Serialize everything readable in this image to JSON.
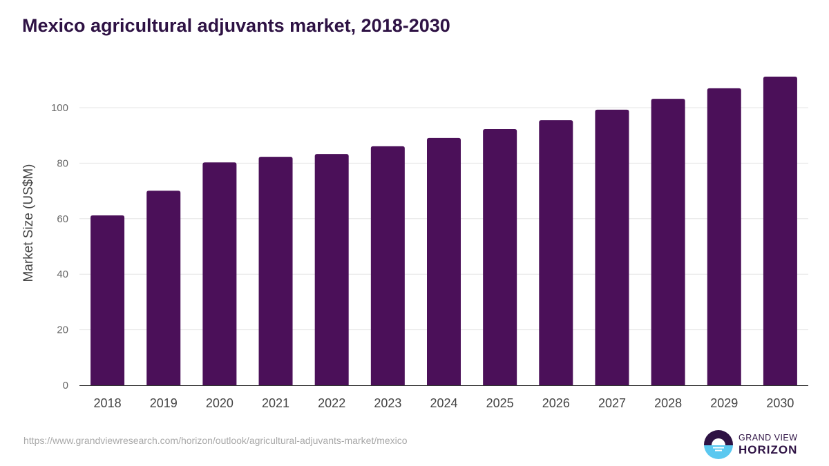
{
  "title": "Mexico agricultural adjuvants market, 2018-2030",
  "source_url": "https://www.grandviewresearch.com/horizon/outlook/agricultural-adjuvants-market/mexico",
  "logo": {
    "line1": "GRAND VIEW",
    "line2": "HORIZON"
  },
  "colors": {
    "bar": "#4b1059",
    "title": "#2e1244",
    "grid": "#e6e6e6"
  },
  "chart_data": {
    "type": "bar",
    "title": "Mexico agricultural adjuvants market, 2018-2030",
    "xlabel": "",
    "ylabel": "Market Size (US$M)",
    "ylim": [
      0,
      120
    ],
    "yticks": [
      0,
      20,
      40,
      60,
      80,
      100
    ],
    "grid": true,
    "categories": [
      "2018",
      "2019",
      "2020",
      "2021",
      "2022",
      "2023",
      "2024",
      "2025",
      "2026",
      "2027",
      "2028",
      "2029",
      "2030"
    ],
    "values": [
      61.2,
      70.1,
      80.3,
      82.3,
      83.3,
      86.1,
      89.1,
      92.3,
      95.5,
      99.3,
      103.2,
      107.0,
      111.2
    ]
  }
}
